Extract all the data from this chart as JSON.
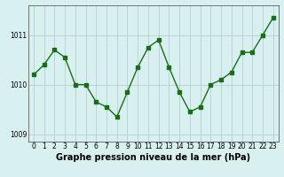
{
  "x": [
    0,
    1,
    2,
    3,
    4,
    5,
    6,
    7,
    8,
    9,
    10,
    11,
    12,
    13,
    14,
    15,
    16,
    17,
    18,
    19,
    20,
    21,
    22,
    23
  ],
  "y": [
    1010.2,
    1010.4,
    1010.7,
    1010.55,
    1010.0,
    1010.0,
    1009.65,
    1009.55,
    1009.35,
    1009.85,
    1010.35,
    1010.75,
    1010.9,
    1010.35,
    1009.85,
    1009.45,
    1009.55,
    1010.0,
    1010.1,
    1010.25,
    1010.65,
    1010.65,
    1011.0,
    1011.35
  ],
  "line_color": "#1a6e1a",
  "marker": "s",
  "markersize": 2.5,
  "linewidth": 1.0,
  "bg_color": "#d8f0f0",
  "grid_color": "#b0c8c8",
  "xlabel": "Graphe pression niveau de la mer (hPa)",
  "xlabel_fontsize": 7,
  "yticks": [
    1009,
    1010,
    1011
  ],
  "ylim": [
    1008.85,
    1011.6
  ],
  "xlim": [
    -0.5,
    23.5
  ],
  "xtick_labels": [
    "0",
    "1",
    "2",
    "3",
    "4",
    "5",
    "6",
    "7",
    "8",
    "9",
    "10",
    "11",
    "12",
    "13",
    "14",
    "15",
    "16",
    "17",
    "18",
    "19",
    "20",
    "21",
    "22",
    "23"
  ],
  "tick_fontsize": 5.5,
  "ytick_fontsize": 5.5,
  "grid_linewidth": 0.5
}
